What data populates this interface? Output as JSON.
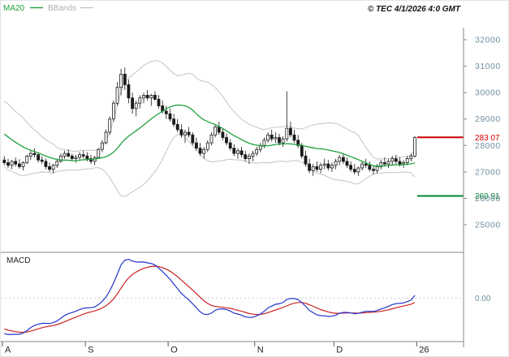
{
  "header": {
    "copyright": "© TEC 4/1/2026 4:0 GMT"
  },
  "chart_data": {
    "type": "candlestick",
    "panels": [
      "price",
      "macd"
    ],
    "overlays": [
      {
        "name": "MA20",
        "kind": "sma",
        "period": 20,
        "color": "#1fa03c"
      },
      {
        "name": "BBands",
        "kind": "bollinger",
        "period": 20,
        "stddev": 2,
        "color": "#c4c4c4"
      }
    ],
    "indicator_panel": {
      "name": "MACD",
      "params": [
        12,
        26,
        9
      ],
      "macd_color": "#2233cc",
      "signal_color": "#cc2222",
      "zero_label": "0.00"
    },
    "y_ticks": [
      32000,
      31000,
      30000,
      29000,
      28000,
      27000,
      26000,
      25000
    ],
    "y_range": [
      24700,
      32400
    ],
    "y_tick_color": "#6f8fa0",
    "levels": [
      {
        "label": "283 07",
        "price": 28307,
        "color": "#cc0000"
      },
      {
        "label": "260 91",
        "price": 26091,
        "color": "#008833"
      }
    ],
    "x_ticks": [
      {
        "label": "A",
        "index": 0
      },
      {
        "label": "S",
        "index": 22
      },
      {
        "label": "O",
        "index": 44
      },
      {
        "label": "N",
        "index": 67
      },
      {
        "label": "D",
        "index": 88
      },
      {
        "label": "26",
        "index": 110
      }
    ],
    "warmup_closes": [
      30050,
      29900,
      29800,
      29850,
      29650,
      29500,
      29400,
      29450,
      29250,
      29100,
      28950,
      29000,
      28800,
      28650,
      28500,
      28550,
      28350,
      28200,
      28100,
      28150,
      27950,
      27800,
      27700,
      27750,
      27600
    ],
    "candles": [
      [
        27450,
        27600,
        27250,
        27350
      ],
      [
        27350,
        27500,
        27150,
        27250
      ],
      [
        27250,
        27450,
        27100,
        27400
      ],
      [
        27400,
        27550,
        27200,
        27300
      ],
      [
        27300,
        27480,
        27120,
        27200
      ],
      [
        27200,
        27400,
        27050,
        27350
      ],
      [
        27350,
        27650,
        27300,
        27600
      ],
      [
        27600,
        27800,
        27450,
        27700
      ],
      [
        27700,
        27900,
        27550,
        27650
      ],
      [
        27650,
        27750,
        27350,
        27450
      ],
      [
        27450,
        27600,
        27300,
        27400
      ],
      [
        27400,
        27500,
        27100,
        27200
      ],
      [
        27200,
        27350,
        27000,
        27100
      ],
      [
        27100,
        27300,
        26950,
        27250
      ],
      [
        27250,
        27500,
        27150,
        27400
      ],
      [
        27400,
        27700,
        27350,
        27600
      ],
      [
        27600,
        27800,
        27500,
        27700
      ],
      [
        27700,
        27850,
        27550,
        27600
      ],
      [
        27600,
        27700,
        27400,
        27500
      ],
      [
        27500,
        27650,
        27350,
        27550
      ],
      [
        27550,
        27750,
        27450,
        27650
      ],
      [
        27650,
        27800,
        27500,
        27600
      ],
      [
        27600,
        27750,
        27400,
        27500
      ],
      [
        27500,
        27650,
        27300,
        27400
      ],
      [
        27400,
        27600,
        27250,
        27550
      ],
      [
        27550,
        27900,
        27500,
        27850
      ],
      [
        27850,
        28200,
        27750,
        28100
      ],
      [
        28100,
        28600,
        28050,
        28500
      ],
      [
        28500,
        29100,
        28400,
        29000
      ],
      [
        29000,
        29700,
        28900,
        29600
      ],
      [
        29600,
        30400,
        29500,
        30200
      ],
      [
        30200,
        30900,
        29900,
        30700
      ],
      [
        30700,
        30950,
        30100,
        30300
      ],
      [
        30300,
        30500,
        29600,
        29800
      ],
      [
        29800,
        30000,
        29200,
        29400
      ],
      [
        29400,
        29700,
        29100,
        29600
      ],
      [
        29600,
        29900,
        29400,
        29800
      ],
      [
        29800,
        30000,
        29600,
        29900
      ],
      [
        29900,
        30100,
        29700,
        29800
      ],
      [
        29800,
        29950,
        29500,
        29900
      ],
      [
        29900,
        30050,
        29700,
        29750
      ],
      [
        29750,
        29900,
        29400,
        29500
      ],
      [
        29500,
        29700,
        29200,
        29300
      ],
      [
        29300,
        29500,
        29000,
        29200
      ],
      [
        29200,
        29400,
        28900,
        29000
      ],
      [
        29000,
        29200,
        28700,
        28800
      ],
      [
        28800,
        29000,
        28500,
        28600
      ],
      [
        28600,
        28800,
        28300,
        28400
      ],
      [
        28400,
        28600,
        28100,
        28500
      ],
      [
        28500,
        28700,
        28300,
        28400
      ],
      [
        28400,
        28500,
        28000,
        28100
      ],
      [
        28100,
        28300,
        27800,
        27900
      ],
      [
        27900,
        28100,
        27600,
        27700
      ],
      [
        27700,
        27950,
        27500,
        27850
      ],
      [
        27850,
        28200,
        27750,
        28100
      ],
      [
        28100,
        28500,
        28000,
        28400
      ],
      [
        28400,
        28800,
        28300,
        28700
      ],
      [
        28700,
        28900,
        28400,
        28500
      ],
      [
        28500,
        28650,
        28200,
        28300
      ],
      [
        28300,
        28450,
        28000,
        28100
      ],
      [
        28100,
        28250,
        27800,
        27900
      ],
      [
        27900,
        28050,
        27600,
        27700
      ],
      [
        27700,
        27900,
        27500,
        27800
      ],
      [
        27800,
        27950,
        27550,
        27650
      ],
      [
        27650,
        27800,
        27400,
        27500
      ],
      [
        27500,
        27700,
        27300,
        27600
      ],
      [
        27600,
        27800,
        27400,
        27700
      ],
      [
        27700,
        27950,
        27600,
        27850
      ],
      [
        27850,
        28100,
        27750,
        28000
      ],
      [
        28000,
        28300,
        27900,
        28200
      ],
      [
        28200,
        28500,
        28100,
        28400
      ],
      [
        28400,
        28600,
        28150,
        28250
      ],
      [
        28250,
        28500,
        28100,
        28300
      ],
      [
        28300,
        28450,
        28000,
        28100
      ],
      [
        28100,
        28350,
        27950,
        28250
      ],
      [
        28250,
        30050,
        28150,
        28650
      ],
      [
        28650,
        28900,
        28300,
        28400
      ],
      [
        28400,
        28600,
        28100,
        28200
      ],
      [
        28200,
        28400,
        27900,
        28000
      ],
      [
        28000,
        28100,
        27500,
        27600
      ],
      [
        27600,
        27800,
        27200,
        27300
      ],
      [
        27300,
        27500,
        26950,
        27050
      ],
      [
        27050,
        27300,
        26850,
        27200
      ],
      [
        27200,
        27400,
        27000,
        27100
      ],
      [
        27100,
        27350,
        26950,
        27250
      ],
      [
        27250,
        27500,
        27100,
        27300
      ],
      [
        27300,
        27450,
        27050,
        27150
      ],
      [
        27150,
        27350,
        27000,
        27250
      ],
      [
        27250,
        27500,
        27100,
        27400
      ],
      [
        27400,
        27650,
        27250,
        27550
      ],
      [
        27550,
        27700,
        27300,
        27400
      ],
      [
        27400,
        27550,
        27150,
        27250
      ],
      [
        27250,
        27400,
        27000,
        27100
      ],
      [
        27100,
        27300,
        26900,
        27000
      ],
      [
        27000,
        27200,
        26850,
        27150
      ],
      [
        27150,
        27400,
        27050,
        27300
      ],
      [
        27300,
        27500,
        27150,
        27250
      ],
      [
        27250,
        27400,
        27000,
        27100
      ],
      [
        27100,
        27250,
        26900,
        27050
      ],
      [
        27050,
        27300,
        26950,
        27200
      ],
      [
        27200,
        27450,
        27100,
        27350
      ],
      [
        27350,
        27550,
        27200,
        27300
      ],
      [
        27300,
        27500,
        27150,
        27400
      ],
      [
        27400,
        27600,
        27250,
        27500
      ],
      [
        27500,
        27650,
        27300,
        27400
      ],
      [
        27400,
        27550,
        27200,
        27300
      ],
      [
        27300,
        27450,
        27150,
        27350
      ],
      [
        27350,
        27600,
        27250,
        27500
      ],
      [
        27500,
        27700,
        27400,
        27600
      ],
      [
        27600,
        28350,
        27550,
        28307
      ]
    ]
  }
}
